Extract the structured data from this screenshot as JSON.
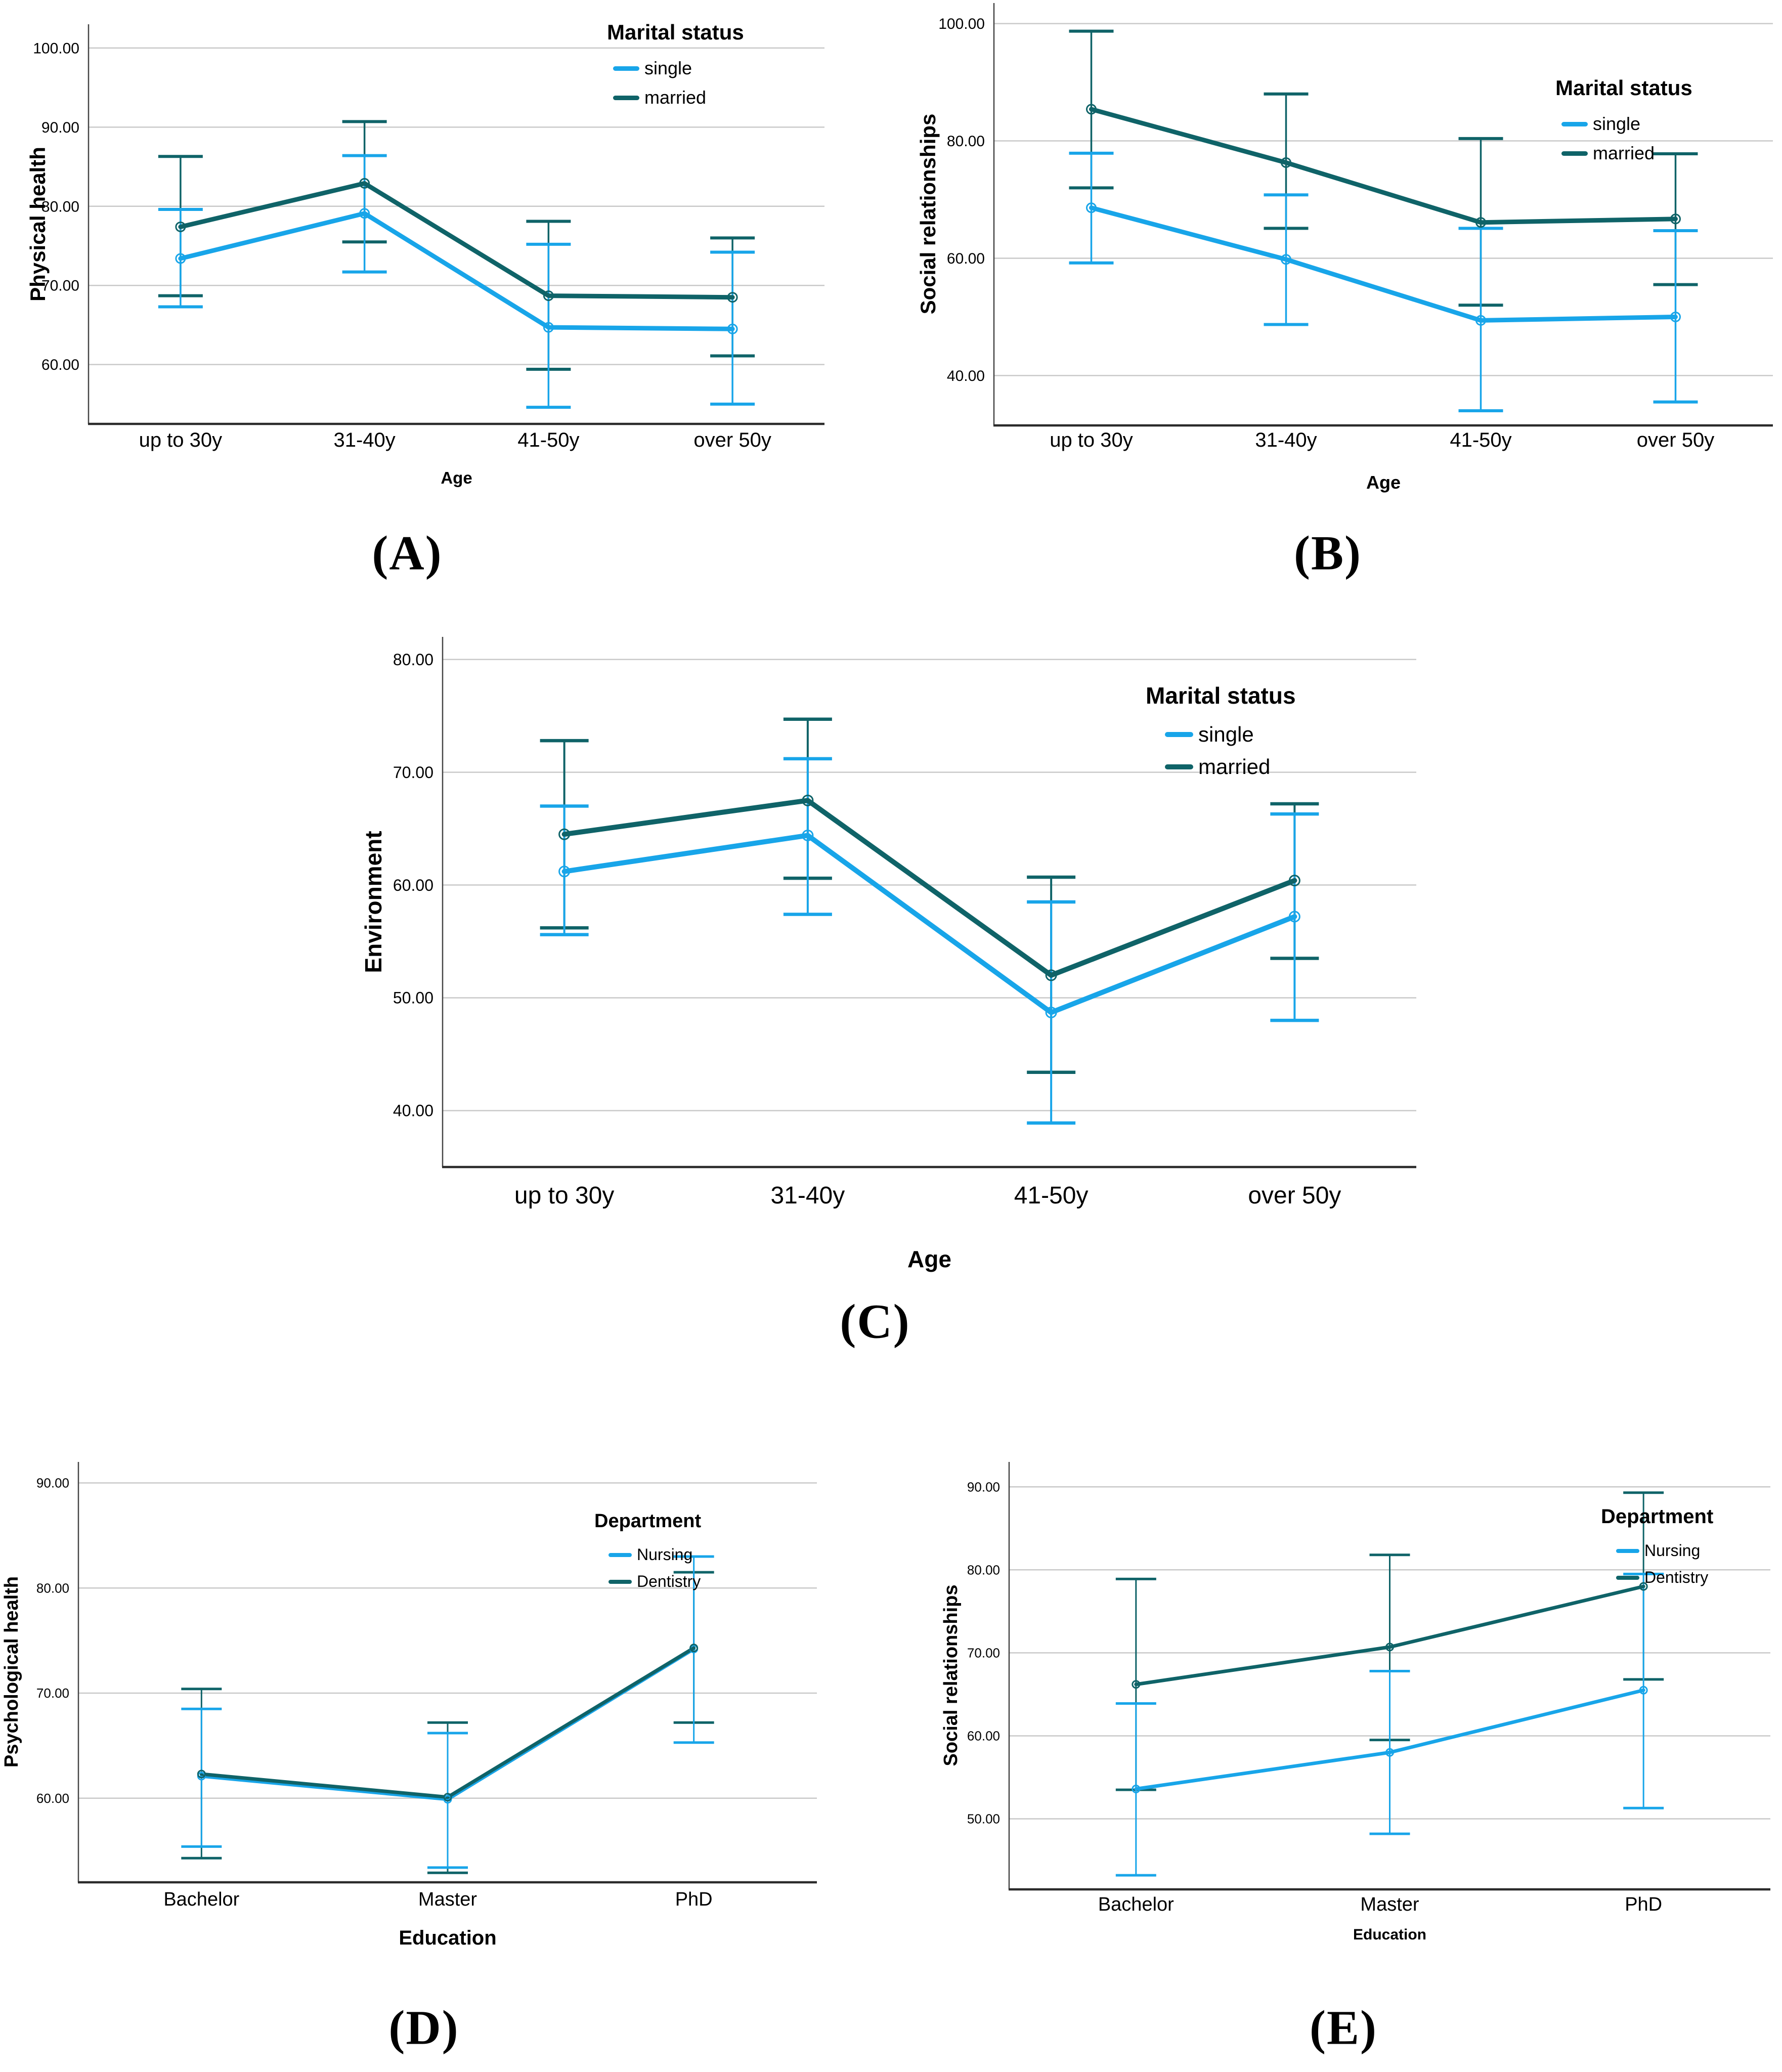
{
  "colors": {
    "single_nursing": "#18A5E9",
    "married_dentistry": "#0F6368",
    "grid": "#C9C9C9",
    "axis_left": "#454545",
    "axis_bottom": "#2B2B2B",
    "text": "#000000"
  },
  "chart_data": [
    {
      "panel": "A",
      "panel_label": "(A)",
      "type": "line",
      "title": "",
      "xlabel": "Age",
      "ylabel": "Physical health",
      "categories": [
        "up to 30y",
        "31-40y",
        "41-50y",
        "over 50y"
      ],
      "yticks": [
        60,
        70,
        80,
        90,
        100
      ],
      "ylim": [
        52.5,
        103
      ],
      "grid": true,
      "error_bars": true,
      "legend": {
        "title": "Marital status",
        "position": "top-right"
      },
      "series": [
        {
          "name": "single",
          "color": "#18A5E9",
          "values": [
            73.4,
            79.1,
            64.7,
            64.5
          ],
          "ci_low": [
            67.3,
            71.7,
            54.6,
            55.0
          ],
          "ci_high": [
            79.6,
            86.4,
            75.2,
            74.2
          ]
        },
        {
          "name": "married",
          "color": "#0F6368",
          "values": [
            77.4,
            82.9,
            68.7,
            68.5
          ],
          "ci_low": [
            68.7,
            75.5,
            59.4,
            61.1
          ],
          "ci_high": [
            86.3,
            90.7,
            78.1,
            76.0
          ]
        }
      ]
    },
    {
      "panel": "B",
      "panel_label": "(B)",
      "type": "line",
      "title": "",
      "xlabel": "Age",
      "ylabel": "Social relationships",
      "categories": [
        "up to 30y",
        "31-40y",
        "41-50y",
        "over 50y"
      ],
      "yticks": [
        40,
        60,
        80,
        100
      ],
      "ylim": [
        31.5,
        103.5
      ],
      "grid": true,
      "error_bars": true,
      "legend": {
        "title": "Marital status",
        "position": "top-right"
      },
      "series": [
        {
          "name": "single",
          "color": "#18A5E9",
          "values": [
            68.6,
            59.8,
            49.4,
            50.0
          ],
          "ci_low": [
            59.2,
            48.7,
            34.0,
            35.5
          ],
          "ci_high": [
            77.9,
            70.8,
            65.1,
            64.7
          ]
        },
        {
          "name": "married",
          "color": "#0F6368",
          "values": [
            85.4,
            76.3,
            66.1,
            66.7
          ],
          "ci_low": [
            72.0,
            65.1,
            52.0,
            55.5
          ],
          "ci_high": [
            98.7,
            88.0,
            80.4,
            77.8
          ]
        }
      ]
    },
    {
      "panel": "C",
      "panel_label": "(C)",
      "type": "line",
      "title": "",
      "xlabel": "Age",
      "ylabel": "Environment",
      "categories": [
        "up to 30y",
        "31-40y",
        "41-50y",
        "over 50y"
      ],
      "yticks": [
        40,
        50,
        60,
        70,
        80
      ],
      "ylim": [
        35,
        82
      ],
      "grid": true,
      "error_bars": true,
      "legend": {
        "title": "Marital status",
        "position": "top-right"
      },
      "series": [
        {
          "name": "single",
          "color": "#18A5E9",
          "values": [
            61.2,
            64.4,
            48.7,
            57.2
          ],
          "ci_low": [
            55.6,
            57.4,
            38.9,
            48.0
          ],
          "ci_high": [
            67.0,
            71.2,
            58.5,
            66.3
          ]
        },
        {
          "name": "married",
          "color": "#0F6368",
          "values": [
            64.5,
            67.5,
            52.0,
            60.4
          ],
          "ci_low": [
            56.2,
            60.6,
            43.4,
            53.5
          ],
          "ci_high": [
            72.8,
            74.7,
            60.7,
            67.2
          ]
        }
      ]
    },
    {
      "panel": "D",
      "panel_label": "(D)",
      "type": "line",
      "title": "",
      "xlabel": "Education",
      "ylabel": "Psychological health",
      "categories": [
        "Bachelor",
        "Master",
        "PhD"
      ],
      "yticks": [
        60,
        70,
        80,
        90
      ],
      "ylim": [
        52,
        92
      ],
      "grid": true,
      "error_bars": true,
      "legend": {
        "title": "Department",
        "position": "top-right"
      },
      "series": [
        {
          "name": "Nursing",
          "color": "#18A5E9",
          "values": [
            62.1,
            59.9,
            74.2
          ],
          "ci_low": [
            55.4,
            53.4,
            65.3
          ],
          "ci_high": [
            68.5,
            66.2,
            83.0
          ]
        },
        {
          "name": "Dentistry",
          "color": "#0F6368",
          "values": [
            62.3,
            60.1,
            74.3
          ],
          "ci_low": [
            54.3,
            52.9,
            67.2
          ],
          "ci_high": [
            70.4,
            67.2,
            81.5
          ]
        }
      ]
    },
    {
      "panel": "E",
      "panel_label": "(E)",
      "type": "line",
      "title": "",
      "xlabel": "Education",
      "ylabel": "Social relationships",
      "categories": [
        "Bachelor",
        "Master",
        "PhD"
      ],
      "yticks": [
        50,
        60,
        70,
        80,
        90
      ],
      "ylim": [
        41.5,
        93
      ],
      "grid": true,
      "error_bars": true,
      "legend": {
        "title": "Department",
        "position": "top-right"
      },
      "series": [
        {
          "name": "Nursing",
          "color": "#18A5E9",
          "values": [
            53.6,
            58.0,
            65.5
          ],
          "ci_low": [
            43.2,
            48.2,
            51.3
          ],
          "ci_high": [
            63.9,
            67.8,
            79.5
          ]
        },
        {
          "name": "Dentistry",
          "color": "#0F6368",
          "values": [
            66.2,
            70.7,
            78.0
          ],
          "ci_low": [
            53.5,
            59.5,
            66.8
          ],
          "ci_high": [
            78.9,
            81.8,
            89.3
          ]
        }
      ]
    }
  ]
}
